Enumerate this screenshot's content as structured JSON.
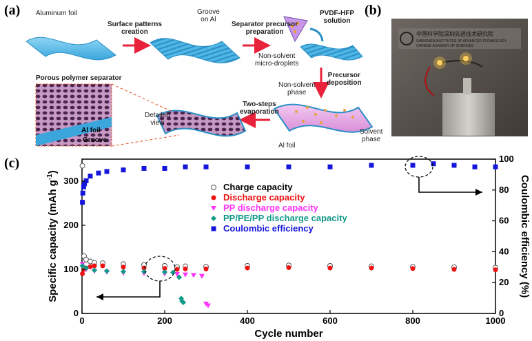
{
  "panel_labels": {
    "a": "(a)",
    "b": "(b)",
    "c": "(c)"
  },
  "schematic": {
    "aluminum_foil": "Aluminum foil",
    "surface_patterns": [
      "Surface patterns",
      "creation"
    ],
    "groove_on_al": [
      "Groove",
      "on Al"
    ],
    "separator_precursor": [
      "Separator precursor",
      "preparation"
    ],
    "pvdf_hfp": [
      "PVDF-HFP",
      "solution"
    ],
    "non_solvent_droplets": [
      "Non-solvent",
      "micro-droplets"
    ],
    "precursor_deposition": [
      "Precursor",
      "deposition"
    ],
    "non_solvent_phase": [
      "Non-solvent",
      "phase"
    ],
    "solvent_phase": [
      "Solvent",
      "phase"
    ],
    "al_foil_bottom": "Al foil",
    "two_steps": [
      "Two-steps",
      "evaporation"
    ],
    "detailed_view": [
      "Detailed",
      "view"
    ],
    "porous_separator": "Porous polymer separator",
    "al_foil_inset": "Al foil",
    "groove_inset": "Groove"
  },
  "photo": {
    "line1": "中国科学院深圳先进技术研究院",
    "line2": "SHENZHEN INSTITUTES OF ADVANCED TECHNOLOGY",
    "line3": "CHINESE ACADEMY OF SCIENCES"
  },
  "chart_data": {
    "type": "scatter",
    "xlabel": "Cycle number",
    "ylabel": "Specific capacity (mAh g-1)",
    "ylabel_main": "Specific capacity (mAh g",
    "ylabel_sup": "-1",
    "ylabel_close": ")",
    "y2label": "Coulombic efficiency (%)",
    "xlim": [
      0,
      1000
    ],
    "ylim": [
      0,
      350
    ],
    "y2lim": [
      0,
      100
    ],
    "xticks": [
      0,
      200,
      400,
      600,
      800,
      1000
    ],
    "yticks": [
      0,
      100,
      200,
      300
    ],
    "y2ticks": [
      0,
      20,
      40,
      60,
      80,
      100
    ],
    "legend": [
      "Charge capacity",
      "Discharge capacity",
      "PP discharge capacity",
      "PP/PE/PP discharge capacity",
      "Coulombic efficiency"
    ],
    "colors": {
      "charge": "#555555",
      "discharge": "#ee1111",
      "pp": "#ff33ff",
      "ppe": "#119988",
      "ce": "#1515dd"
    },
    "series": [
      {
        "name": "Charge capacity",
        "axis": "left",
        "marker": "open-circle",
        "x": [
          1,
          5,
          10,
          20,
          30,
          50,
          100,
          150,
          200,
          230,
          250,
          300,
          400,
          500,
          600,
          700,
          800,
          900,
          1000
        ],
        "values": [
          335,
          130,
          122,
          118,
          115,
          114,
          112,
          110,
          108,
          105,
          107,
          106,
          108,
          109,
          108,
          107,
          106,
          105,
          104
        ]
      },
      {
        "name": "Discharge capacity",
        "axis": "left",
        "marker": "filled-circle",
        "x": [
          1,
          5,
          10,
          20,
          30,
          50,
          100,
          150,
          200,
          230,
          250,
          300,
          400,
          500,
          600,
          700,
          800,
          900,
          1000
        ],
        "values": [
          90,
          100,
          103,
          106,
          108,
          108,
          105,
          103,
          102,
          100,
          101,
          101,
          103,
          104,
          103,
          103,
          102,
          100,
          99
        ]
      },
      {
        "name": "PP discharge capacity",
        "axis": "left",
        "marker": "down-triangle",
        "x": [
          1,
          10,
          30,
          60,
          100,
          150,
          200,
          230,
          250,
          270,
          290,
          300,
          305
        ],
        "values": [
          112,
          100,
          96,
          94,
          92,
          91,
          90,
          89,
          88,
          87,
          85,
          22,
          18
        ]
      },
      {
        "name": "PP/PE/PP discharge capacity",
        "axis": "left",
        "marker": "diamond",
        "x": [
          1,
          10,
          30,
          60,
          100,
          150,
          200,
          220,
          235,
          240,
          242,
          245
        ],
        "values": [
          108,
          103,
          98,
          96,
          95,
          95,
          94,
          93,
          82,
          34,
          28,
          25
        ]
      },
      {
        "name": "Coulombic efficiency",
        "axis": "right",
        "marker": "filled-square",
        "x": [
          1,
          2,
          4,
          6,
          10,
          20,
          40,
          60,
          100,
          150,
          200,
          250,
          300,
          400,
          500,
          600,
          700,
          800,
          850,
          900,
          950,
          1000
        ],
        "values": [
          72,
          78,
          82,
          84,
          86,
          89,
          91,
          92,
          93,
          94,
          94,
          95,
          95,
          95,
          95,
          95,
          96,
          96,
          97,
          96,
          95,
          95
        ]
      }
    ]
  }
}
